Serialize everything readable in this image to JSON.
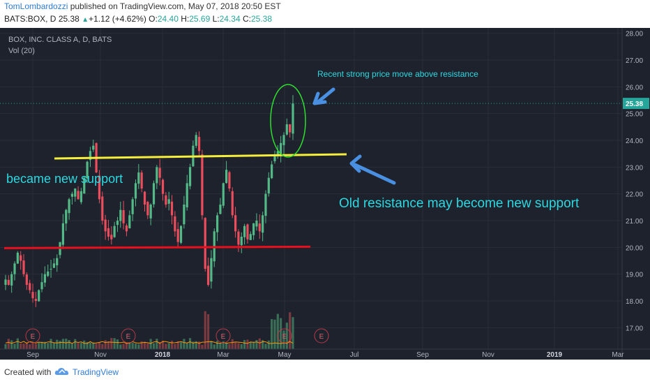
{
  "header": {
    "author": "TomLombardozzi",
    "published": " published on TradingView.com, May 07, 2018 20:50 EST",
    "symbol": "BATS:BOX, D",
    "last": "25.38",
    "up_arrow": "▲",
    "change": "+1.12 (+4.62%)",
    "o_label": "O:",
    "o": "24.40",
    "h_label": "H:",
    "h": "25.69",
    "l_label": "L:",
    "l": "24.34",
    "c_label": "C:",
    "c": "25.38"
  },
  "footer": {
    "created": "Created with",
    "brand": "TradingView"
  },
  "chart_data": {
    "type": "candlestick",
    "title": "BOX, INC. CLASS A, D, BATS",
    "volume_label": "Vol (20)",
    "ylim": [
      16.2,
      28.2
    ],
    "y_ticks": [
      "17.00",
      "18.00",
      "19.00",
      "20.00",
      "21.00",
      "22.00",
      "23.00",
      "24.00",
      "25.00",
      "26.00",
      "27.00",
      "28.00"
    ],
    "x_ticks": [
      "Sep",
      "Nov",
      "2018",
      "Mar",
      "May",
      "Jul",
      "Sep",
      "Nov",
      "2019",
      "Mar"
    ],
    "x_ticks_bold": [
      "2018",
      "2019"
    ],
    "last_price": "25.38",
    "colors": {
      "up": "#53b987",
      "down": "#eb4d5c",
      "background": "#1e222d",
      "grid": "#2a2e39",
      "text": "#b2b5be",
      "price_label": "#26a69a",
      "volume_ma": "#ff9800"
    },
    "candles_close_path": [
      18.8,
      18.6,
      19.0,
      19.4,
      19.8,
      19.5,
      19.0,
      18.6,
      18.4,
      18.1,
      18.0,
      18.4,
      18.7,
      19.0,
      19.1,
      19.2,
      19.4,
      19.6,
      20.2,
      20.9,
      21.4,
      21.8,
      22.0,
      22.2,
      21.8,
      22.1,
      22.6,
      23.2,
      23.6,
      23.8,
      22.8,
      21.8,
      21.0,
      20.6,
      20.4,
      20.3,
      20.8,
      21.0,
      21.4,
      20.9,
      20.6,
      21.2,
      21.8,
      22.4,
      22.8,
      22.2,
      21.6,
      21.2,
      21.6,
      22.4,
      23.0,
      22.6,
      22.0,
      21.6,
      21.8,
      21.2,
      20.6,
      20.2,
      20.8,
      21.6,
      22.4,
      23.0,
      23.8,
      24.2,
      23.6,
      21.2,
      19.2,
      18.6,
      19.6,
      20.6,
      21.2,
      21.6,
      22.4,
      22.9,
      22.2,
      21.2,
      20.6,
      20.1,
      20.4,
      20.8,
      20.3,
      20.5,
      20.9,
      21.0,
      20.6,
      21.2,
      22.0,
      22.6,
      23.1,
      23.4,
      23.6,
      23.9,
      24.2,
      24.6,
      24.3,
      25.38
    ],
    "annotations": {
      "circle_note": "Recent strong price move above resistance",
      "arrow_note": "Old resistance may become new support",
      "left_note": "became new support",
      "resistance_level": 23.4,
      "support_level": 20.0
    },
    "events": [
      "E",
      "E",
      "E",
      "E",
      "E"
    ],
    "grid": true
  }
}
